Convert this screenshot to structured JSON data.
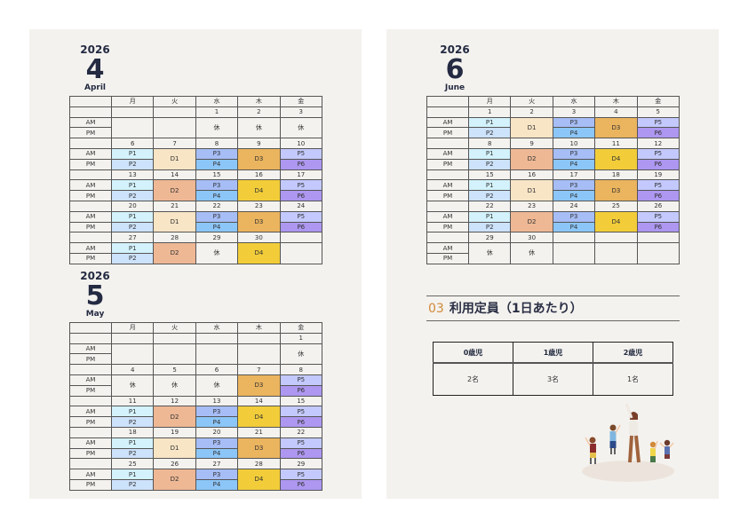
{
  "weekdays": [
    "月",
    "火",
    "水",
    "木",
    "金"
  ],
  "am_label": "AM",
  "pm_label": "PM",
  "colors": {
    "P1": "#d3f2fc",
    "P2": "#cde2fb",
    "P3": "#a6bdf6",
    "P4": "#8cc6f8",
    "P5": "#c3c9fc",
    "P6": "#ad97f0",
    "D1": "#f8e5c6",
    "D2": "#eeb895",
    "D3": "#ebb45e",
    "D4": "#f2cd39"
  },
  "months": [
    {
      "id": "april",
      "year": "2026",
      "number": "4",
      "name": "April",
      "weeks": [
        {
          "dates": [
            "",
            "",
            "1",
            "2",
            "3"
          ],
          "cells": [
            null,
            null,
            {
              "full": "休"
            },
            {
              "full": "休"
            },
            {
              "full": "休"
            }
          ]
        },
        {
          "dates": [
            "6",
            "7",
            "8",
            "9",
            "10"
          ],
          "cells": [
            {
              "am": "P1",
              "pm": "P2"
            },
            {
              "full": "D1"
            },
            {
              "am": "P3",
              "pm": "P4"
            },
            {
              "full": "D3"
            },
            {
              "am": "P5",
              "pm": "P6"
            }
          ]
        },
        {
          "dates": [
            "13",
            "14",
            "15",
            "16",
            "17"
          ],
          "cells": [
            {
              "am": "P1",
              "pm": "P2"
            },
            {
              "full": "D2"
            },
            {
              "am": "P3",
              "pm": "P4"
            },
            {
              "full": "D4"
            },
            {
              "am": "P5",
              "pm": "P6"
            }
          ]
        },
        {
          "dates": [
            "20",
            "21",
            "22",
            "23",
            "24"
          ],
          "cells": [
            {
              "am": "P1",
              "pm": "P2"
            },
            {
              "full": "D1"
            },
            {
              "am": "P3",
              "pm": "P4"
            },
            {
              "full": "D3"
            },
            {
              "am": "P5",
              "pm": "P6"
            }
          ]
        },
        {
          "dates": [
            "27",
            "28",
            "29",
            "30",
            ""
          ],
          "cells": [
            {
              "am": "P1",
              "pm": "P2"
            },
            {
              "full": "D2"
            },
            {
              "full": "休"
            },
            {
              "full": "D4"
            },
            null
          ]
        }
      ]
    },
    {
      "id": "may",
      "year": "2026",
      "number": "5",
      "name": "May",
      "weeks": [
        {
          "dates": [
            "",
            "",
            "",
            "",
            "1"
          ],
          "cells": [
            null,
            null,
            null,
            null,
            {
              "full": "休"
            }
          ]
        },
        {
          "dates": [
            "4",
            "5",
            "6",
            "7",
            "8"
          ],
          "cells": [
            {
              "full": "休"
            },
            {
              "full": "休"
            },
            {
              "full": "休"
            },
            {
              "full": "D3"
            },
            {
              "am": "P5",
              "pm": "P6"
            }
          ]
        },
        {
          "dates": [
            "11",
            "12",
            "13",
            "14",
            "15"
          ],
          "cells": [
            {
              "am": "P1",
              "pm": "P2"
            },
            {
              "full": "D2"
            },
            {
              "am": "P3",
              "pm": "P4"
            },
            {
              "full": "D4"
            },
            {
              "am": "P5",
              "pm": "P6"
            }
          ]
        },
        {
          "dates": [
            "18",
            "19",
            "20",
            "21",
            "22"
          ],
          "cells": [
            {
              "am": "P1",
              "pm": "P2"
            },
            {
              "full": "D1"
            },
            {
              "am": "P3",
              "pm": "P4"
            },
            {
              "full": "D3"
            },
            {
              "am": "P5",
              "pm": "P6"
            }
          ]
        },
        {
          "dates": [
            "25",
            "26",
            "27",
            "28",
            "29"
          ],
          "cells": [
            {
              "am": "P1",
              "pm": "P2"
            },
            {
              "full": "D2"
            },
            {
              "am": "P3",
              "pm": "P4"
            },
            {
              "full": "D4"
            },
            {
              "am": "P5",
              "pm": "P6"
            }
          ]
        }
      ]
    },
    {
      "id": "june",
      "year": "2026",
      "number": "6",
      "name": "June",
      "weeks": [
        {
          "dates": [
            "1",
            "2",
            "3",
            "4",
            "5"
          ],
          "cells": [
            {
              "am": "P1",
              "pm": "P2"
            },
            {
              "full": "D1"
            },
            {
              "am": "P3",
              "pm": "P4"
            },
            {
              "full": "D3"
            },
            {
              "am": "P5",
              "pm": "P6"
            }
          ]
        },
        {
          "dates": [
            "8",
            "9",
            "10",
            "11",
            "12"
          ],
          "cells": [
            {
              "am": "P1",
              "pm": "P2"
            },
            {
              "full": "D2"
            },
            {
              "am": "P3",
              "pm": "P4"
            },
            {
              "full": "D4"
            },
            {
              "am": "P5",
              "pm": "P6"
            }
          ]
        },
        {
          "dates": [
            "15",
            "16",
            "17",
            "18",
            "19"
          ],
          "cells": [
            {
              "am": "P1",
              "pm": "P2"
            },
            {
              "full": "D1"
            },
            {
              "am": "P3",
              "pm": "P4"
            },
            {
              "full": "D3"
            },
            {
              "am": "P5",
              "pm": "P6"
            }
          ]
        },
        {
          "dates": [
            "22",
            "23",
            "24",
            "25",
            "26"
          ],
          "cells": [
            {
              "am": "P1",
              "pm": "P2"
            },
            {
              "full": "D2"
            },
            {
              "am": "P3",
              "pm": "P4"
            },
            {
              "full": "D4"
            },
            {
              "am": "P5",
              "pm": "P6"
            }
          ]
        },
        {
          "dates": [
            "29",
            "30",
            "",
            "",
            ""
          ],
          "cells": [
            {
              "full": "休"
            },
            {
              "full": "休"
            },
            null,
            null,
            null
          ]
        }
      ]
    }
  ],
  "capacity": {
    "section_number": "03",
    "title": "利用定員（1日あたり）",
    "headers": [
      "0歳児",
      "1歳児",
      "2歳児"
    ],
    "values": [
      "2名",
      "3名",
      "1名"
    ]
  },
  "illustration": "children-exercising-with-teacher"
}
